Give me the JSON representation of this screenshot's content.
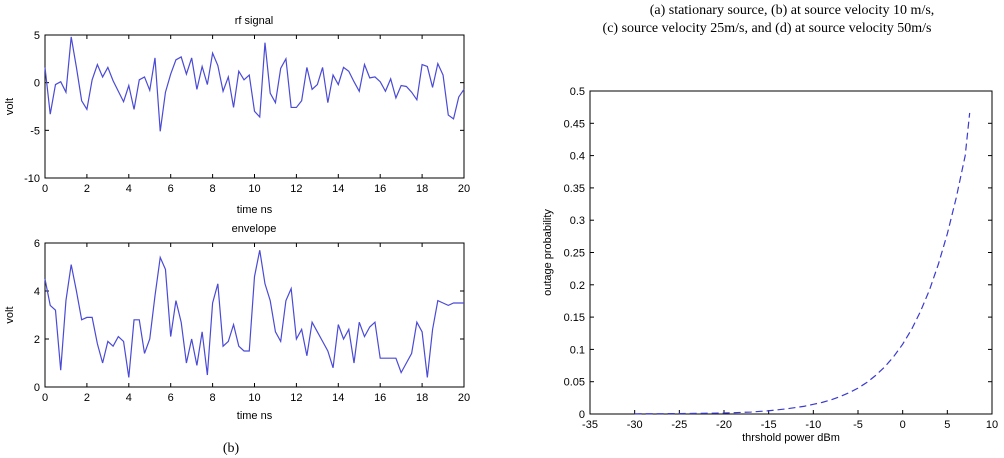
{
  "caption": {
    "line1": "(a)  stationary source, (b) at source velocity 10 m/s,",
    "line2": "(c) source velocity 25m/s, and (d) at source velocity 50m/s",
    "label_b": "(b)"
  },
  "chart_data": [
    {
      "type": "line",
      "title": "rf signal",
      "xlabel": "time ns",
      "ylabel": "volt",
      "xlim": [
        0,
        20
      ],
      "ylim": [
        -10,
        5
      ],
      "xticks": [
        0,
        2,
        4,
        6,
        8,
        10,
        12,
        14,
        16,
        18,
        20
      ],
      "yticks": [
        -10,
        -5,
        0,
        5
      ],
      "color": "#4a4ad6",
      "x": [
        0,
        0.25,
        0.5,
        0.75,
        1.0,
        1.25,
        1.5,
        1.75,
        2.0,
        2.25,
        2.5,
        2.75,
        3.0,
        3.25,
        3.5,
        3.75,
        4.0,
        4.25,
        4.5,
        4.75,
        5.0,
        5.25,
        5.5,
        5.75,
        6.0,
        6.25,
        6.5,
        6.75,
        7.0,
        7.25,
        7.5,
        7.75,
        8.0,
        8.25,
        8.5,
        8.75,
        9.0,
        9.25,
        9.5,
        9.75,
        10.0,
        10.25,
        10.5,
        10.75,
        11.0,
        11.25,
        11.5,
        11.75,
        12.0,
        12.25,
        12.5,
        12.75,
        13.0,
        13.25,
        13.5,
        13.75,
        14.0,
        14.25,
        14.5,
        14.75,
        15.0,
        15.25,
        15.5,
        15.75,
        16.0,
        16.25,
        16.5,
        16.75,
        17.0,
        17.25,
        17.5,
        17.75,
        18.0,
        18.25,
        18.5,
        18.75,
        19.0,
        19.25,
        19.5,
        19.75,
        20.0
      ],
      "values": [
        1.6,
        -3.3,
        -0.2,
        0.1,
        -1.0,
        4.8,
        1.6,
        -1.9,
        -2.8,
        0.3,
        1.9,
        0.6,
        1.6,
        0.2,
        -0.9,
        -2.0,
        -0.3,
        -2.8,
        0.3,
        0.6,
        -0.8,
        2.6,
        -5.1,
        -1.0,
        0.9,
        2.4,
        2.7,
        0.9,
        2.6,
        -0.7,
        1.7,
        -0.2,
        3.1,
        1.8,
        -0.9,
        0.6,
        -2.6,
        1.2,
        0.3,
        0.8,
        -3.0,
        -3.6,
        4.2,
        -1.1,
        -2.1,
        1.5,
        2.5,
        -2.6,
        -2.6,
        -1.9,
        1.6,
        -0.7,
        -0.2,
        1.6,
        -2.1,
        0.8,
        -0.2,
        1.6,
        1.2,
        0.1,
        -0.9,
        1.9,
        0.5,
        0.6,
        0.1,
        -0.9,
        0.4,
        -1.6,
        -0.3,
        -0.4,
        -1.0,
        -1.8,
        1.9,
        1.7,
        -0.5,
        2.0,
        0.8,
        -3.4,
        -3.8,
        -1.5,
        -0.7
      ]
    },
    {
      "type": "line",
      "title": "envelope",
      "xlabel": "time ns",
      "ylabel": "volt",
      "xlim": [
        0,
        20
      ],
      "ylim": [
        0,
        6
      ],
      "xticks": [
        0,
        2,
        4,
        6,
        8,
        10,
        12,
        14,
        16,
        18,
        20
      ],
      "yticks": [
        0,
        2,
        4,
        6
      ],
      "color": "#4a4ad6",
      "x": [
        0,
        0.25,
        0.5,
        0.75,
        1.0,
        1.25,
        1.5,
        1.75,
        2.0,
        2.25,
        2.5,
        2.75,
        3.0,
        3.25,
        3.5,
        3.75,
        4.0,
        4.25,
        4.5,
        4.75,
        5.0,
        5.25,
        5.5,
        5.75,
        6.0,
        6.25,
        6.5,
        6.75,
        7.0,
        7.25,
        7.5,
        7.75,
        8.0,
        8.25,
        8.5,
        8.75,
        9.0,
        9.25,
        9.5,
        9.75,
        10.0,
        10.25,
        10.5,
        10.75,
        11.0,
        11.25,
        11.5,
        11.75,
        12.0,
        12.25,
        12.5,
        12.75,
        13.0,
        13.25,
        13.5,
        13.75,
        14.0,
        14.25,
        14.5,
        14.75,
        15.0,
        15.25,
        15.5,
        15.75,
        16.0,
        16.25,
        16.5,
        16.75,
        17.0,
        17.25,
        17.5,
        17.75,
        18.0,
        18.25,
        18.5,
        18.75,
        19.0,
        19.25,
        19.5,
        19.75,
        20.0
      ],
      "values": [
        4.5,
        3.4,
        3.2,
        0.7,
        3.6,
        5.1,
        4.0,
        2.8,
        2.9,
        2.9,
        1.8,
        1.0,
        1.9,
        1.7,
        2.1,
        1.9,
        0.4,
        2.8,
        2.8,
        1.4,
        2.0,
        3.8,
        5.4,
        4.9,
        2.1,
        3.6,
        2.7,
        1.0,
        2.0,
        0.9,
        2.3,
        0.5,
        3.5,
        4.3,
        1.7,
        1.9,
        2.6,
        1.7,
        1.5,
        1.5,
        4.6,
        5.7,
        4.3,
        3.6,
        2.3,
        1.9,
        3.6,
        4.1,
        2.0,
        2.4,
        1.3,
        2.7,
        2.3,
        1.9,
        1.5,
        0.8,
        2.6,
        2.0,
        2.4,
        1.0,
        2.7,
        2.1,
        2.5,
        2.7,
        1.2,
        1.2,
        1.2,
        1.2,
        0.6,
        1.0,
        1.4,
        2.7,
        2.3,
        0.4,
        2.4,
        3.6,
        3.5,
        3.4,
        3.5,
        3.5,
        3.5
      ]
    },
    {
      "type": "line",
      "xlabel": "thrshold power dBm",
      "ylabel": "outage probability",
      "xlim": [
        -35,
        10
      ],
      "ylim": [
        0,
        0.5
      ],
      "xticks": [
        -35,
        -30,
        -25,
        -20,
        -15,
        -10,
        -5,
        0,
        5,
        10
      ],
      "yticks": [
        0,
        0.05,
        0.1,
        0.15,
        0.2,
        0.25,
        0.3,
        0.35,
        0.4,
        0.45,
        0.5
      ],
      "color": "#3a3ad0",
      "line_style": "dashed",
      "x": [
        -30,
        -25,
        -20,
        -17,
        -15,
        -13,
        -11,
        -10,
        -9,
        -8,
        -7,
        -6,
        -5,
        -4,
        -3,
        -2,
        -1,
        0,
        1,
        2,
        3,
        4,
        5,
        6,
        7,
        7.5
      ],
      "values": [
        0.0003,
        0.0006,
        0.0015,
        0.003,
        0.005,
        0.008,
        0.012,
        0.015,
        0.018,
        0.022,
        0.027,
        0.033,
        0.04,
        0.049,
        0.06,
        0.073,
        0.089,
        0.108,
        0.131,
        0.159,
        0.192,
        0.232,
        0.279,
        0.335,
        0.4,
        0.466
      ]
    }
  ]
}
